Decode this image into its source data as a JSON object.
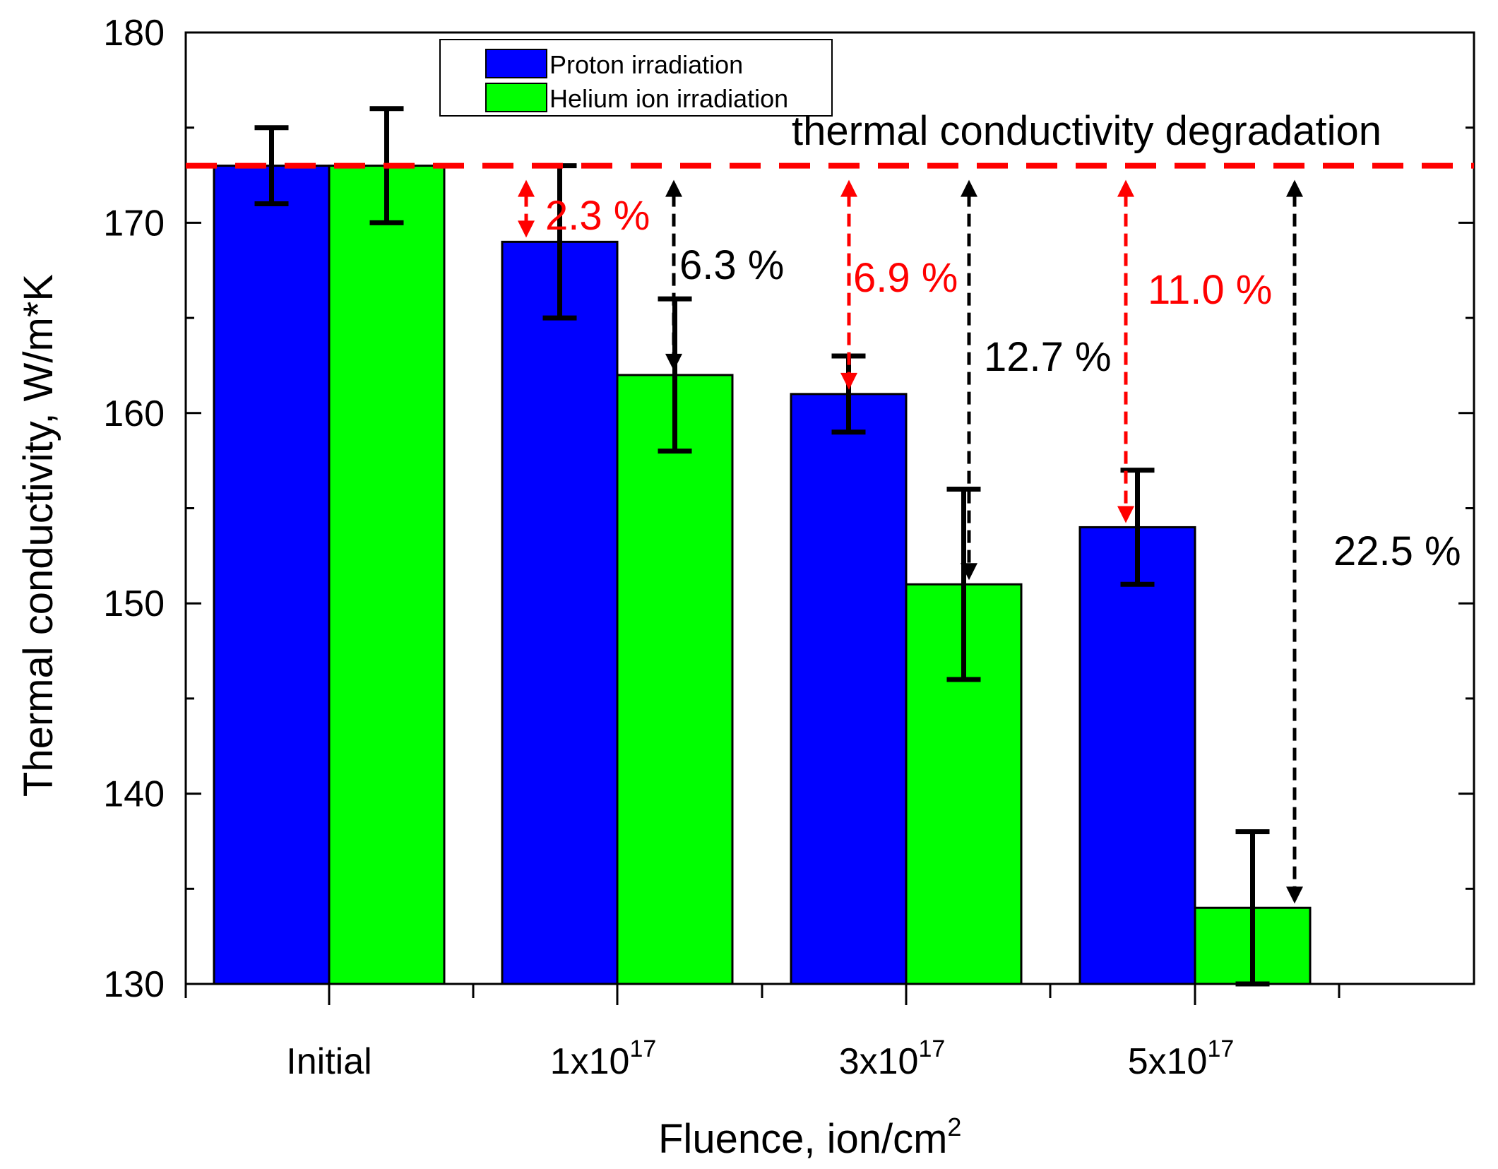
{
  "chart_data": {
    "type": "bar",
    "title": "thermal conductivity degradation",
    "xlabel": "Fluence, ion/cm",
    "xlabel_sup": "2",
    "ylabel": "Thermal conductivity, W/m*K",
    "ylim": [
      130,
      180
    ],
    "yticks": [
      130,
      140,
      150,
      160,
      170,
      180
    ],
    "categories": [
      {
        "base": "Initial",
        "sup": ""
      },
      {
        "base": "1x10",
        "sup": "17"
      },
      {
        "base": "3x10",
        "sup": "17"
      },
      {
        "base": "5x10",
        "sup": "17"
      }
    ],
    "series": [
      {
        "name": "Proton irradiation",
        "color": "#0000FF",
        "values": [
          173,
          169,
          161,
          154
        ],
        "errors": [
          2,
          4,
          2,
          3
        ]
      },
      {
        "name": "Helium ion irradiation",
        "color": "#00FF00",
        "values": [
          173,
          162,
          151,
          134
        ],
        "errors": [
          3,
          4,
          5,
          4
        ]
      }
    ],
    "reference_value": 173,
    "reference_color": "#FF0000",
    "degradation_annotations": [
      {
        "series": 0,
        "category": 1,
        "label": "2.3 %",
        "color": "#FF0000"
      },
      {
        "series": 1,
        "category": 1,
        "label": "6.3 %",
        "color": "#000000"
      },
      {
        "series": 0,
        "category": 2,
        "label": "6.9 %",
        "color": "#FF0000"
      },
      {
        "series": 1,
        "category": 2,
        "label": "12.7 %",
        "color": "#000000"
      },
      {
        "series": 0,
        "category": 3,
        "label": "11.0 %",
        "color": "#FF0000"
      },
      {
        "series": 1,
        "category": 3,
        "label": "22.5 %",
        "color": "#000000"
      }
    ],
    "legend_position": "top-center"
  }
}
